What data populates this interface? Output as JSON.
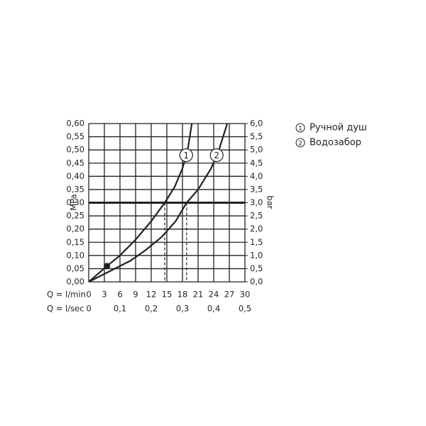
{
  "chart_data": {
    "type": "line",
    "ylabel": "MPa",
    "y2label": "bar",
    "xlabel": "Q = l/min",
    "x2label": "Q = l/sec",
    "xlim": [
      0,
      30
    ],
    "xticks": [
      0,
      3,
      6,
      9,
      12,
      15,
      18,
      21,
      24,
      27,
      30
    ],
    "x2lim": [
      0,
      0.5
    ],
    "x2ticks": [
      {
        "value": 0,
        "label": "0"
      },
      {
        "value": 0.1,
        "label": "0,1"
      },
      {
        "value": 0.2,
        "label": "0,2"
      },
      {
        "value": 0.3,
        "label": "0,3"
      },
      {
        "value": 0.4,
        "label": "0,4"
      },
      {
        "value": 0.5,
        "label": "0,5"
      }
    ],
    "ylim": [
      0,
      0.6
    ],
    "yticks": [
      {
        "value": 0,
        "label": "0,00"
      },
      {
        "value": 0.05,
        "label": "0,05"
      },
      {
        "value": 0.1,
        "label": "0,10"
      },
      {
        "value": 0.15,
        "label": "0,15"
      },
      {
        "value": 0.2,
        "label": "0,20"
      },
      {
        "value": 0.25,
        "label": "0,25"
      },
      {
        "value": 0.3,
        "label": "0,30"
      },
      {
        "value": 0.35,
        "label": "0,35"
      },
      {
        "value": 0.4,
        "label": "0,40"
      },
      {
        "value": 0.45,
        "label": "0,45"
      },
      {
        "value": 0.5,
        "label": "0,50"
      },
      {
        "value": 0.55,
        "label": "0,55"
      },
      {
        "value": 0.6,
        "label": "0,60"
      }
    ],
    "y2lim": [
      0,
      6
    ],
    "y2ticks": [
      {
        "value": 0,
        "label": "0,0"
      },
      {
        "value": 0.5,
        "label": "0,5"
      },
      {
        "value": 1,
        "label": "1,0"
      },
      {
        "value": 1.5,
        "label": "1,5"
      },
      {
        "value": 2,
        "label": "2,0"
      },
      {
        "value": 2.5,
        "label": "2,5"
      },
      {
        "value": 3,
        "label": "3,0"
      },
      {
        "value": 3.5,
        "label": "3,5"
      },
      {
        "value": 4,
        "label": "4,0"
      },
      {
        "value": 4.5,
        "label": "4,5"
      },
      {
        "value": 5,
        "label": "5,0"
      },
      {
        "value": 5.5,
        "label": "5,5"
      },
      {
        "value": 6,
        "label": "6,0"
      }
    ],
    "grid": true,
    "color": "#222222",
    "reference_line": 0.3,
    "point": {
      "x": 3.5,
      "y": 0.06
    },
    "series": [
      {
        "label": "1",
        "name": "Ручной душ",
        "color": "#222222",
        "x": [
          0,
          3.5,
          6,
          9,
          12,
          14.6,
          16.5,
          18,
          19,
          19.8
        ],
        "values": [
          0,
          0.06,
          0.1,
          0.16,
          0.23,
          0.3,
          0.36,
          0.43,
          0.5,
          0.6
        ]
      },
      {
        "label": "2",
        "name": "Водозабор",
        "color": "#222222",
        "x": [
          0,
          4,
          8,
          10.9,
          14,
          16.7,
          18.8,
          21,
          23.5,
          25,
          26.6
        ],
        "values": [
          0,
          0.04,
          0.08,
          0.12,
          0.17,
          0.23,
          0.3,
          0.35,
          0.43,
          0.5,
          0.6
        ]
      }
    ]
  }
}
